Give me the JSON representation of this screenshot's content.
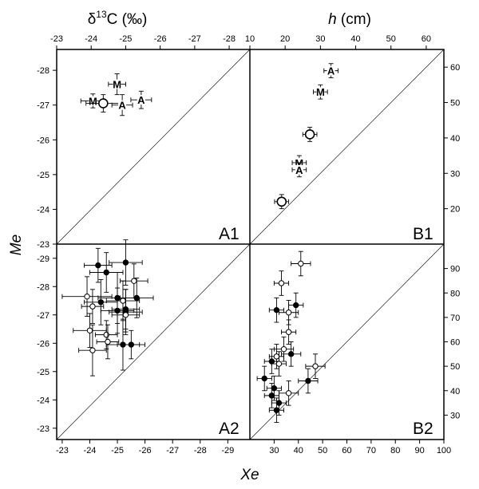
{
  "titles": {
    "top_left_prefix": "δ",
    "top_left_sup": "13",
    "top_left_rest": "C (‰)",
    "top_right_italic": "h",
    "top_right_rest": " (cm)",
    "x_axis": "Xe",
    "y_axis": "Me"
  },
  "axes": {
    "top_left_ticks": [
      "-23",
      "-24",
      "-25",
      "-26",
      "-27",
      "-28"
    ],
    "top_right_ticks": [
      "10",
      "20",
      "30",
      "40",
      "50",
      "60"
    ],
    "bottom_left_ticks": [
      "-23",
      "-24",
      "-25",
      "-26",
      "-27",
      "-28",
      "-29"
    ],
    "bottom_right_ticks": [
      "30",
      "40",
      "50",
      "60",
      "70",
      "80",
      "90",
      "100"
    ],
    "left_upper_ticks": [
      "-28",
      "-27",
      "-26",
      "-25",
      "-24",
      "-23"
    ],
    "left_lower_ticks": [
      "-29",
      "-28",
      "-27",
      "-26",
      "-25",
      "-24",
      "-23"
    ],
    "right_upper_ticks": [
      "60",
      "50",
      "40",
      "30",
      "20"
    ],
    "right_lower_ticks": [
      "90",
      "80",
      "70",
      "60",
      "50",
      "40",
      "30"
    ]
  },
  "chart_data": [
    {
      "panel": "A1",
      "type": "scatter",
      "x_range": [
        -23,
        -28.6
      ],
      "y_range": [
        -23,
        -28.6
      ],
      "diagonal": true,
      "points": [
        {
          "label": "M",
          "x": -24.75,
          "y": -27.6,
          "xerr": 0.25,
          "yerr": 0.3
        },
        {
          "label": "A",
          "x": -25.45,
          "y": -27.15,
          "xerr": 0.3,
          "yerr": 0.25
        },
        {
          "label": "M",
          "x": -24.05,
          "y": -27.12,
          "xerr": 0.35,
          "yerr": 0.2
        },
        {
          "label": "O",
          "x": -24.35,
          "y": -27.05,
          "xerr": 0.5,
          "yerr": 0.25
        },
        {
          "label": "A",
          "x": -24.9,
          "y": -27.0,
          "xerr": 0.3,
          "yerr": 0.3
        }
      ]
    },
    {
      "panel": "B1",
      "type": "scatter",
      "x_range": [
        10,
        65
      ],
      "y_range": [
        10,
        65
      ],
      "diagonal": true,
      "points": [
        {
          "label": "A",
          "x": 33,
          "y": 59,
          "xerr": 2,
          "yerr": 2
        },
        {
          "label": "M",
          "x": 30,
          "y": 53,
          "xerr": 2,
          "yerr": 2
        },
        {
          "label": "O",
          "x": 27,
          "y": 41,
          "xerr": 2,
          "yerr": 2
        },
        {
          "label": "M",
          "x": 24,
          "y": 33,
          "xerr": 2,
          "yerr": 2
        },
        {
          "label": "A",
          "x": 24,
          "y": 31,
          "xerr": 2,
          "yerr": 2
        },
        {
          "label": "O",
          "x": 19,
          "y": 22,
          "xerr": 2,
          "yerr": 2
        }
      ]
    },
    {
      "panel": "A2",
      "type": "scatter",
      "x_range": [
        -22.8,
        -29.8
      ],
      "y_range": [
        -22.6,
        -29.5
      ],
      "diagonal": true,
      "series": [
        {
          "name": "",
          "filled": true,
          "points": [
            {
              "x": -24.3,
              "y": -28.75,
              "xerr": 0.5,
              "yerr": 0.6
            },
            {
              "x": -25.3,
              "y": -28.85,
              "xerr": 0.6,
              "yerr": 0.8
            },
            {
              "x": -24.6,
              "y": -28.5,
              "xerr": 0.6,
              "yerr": 0.7
            },
            {
              "x": -25.0,
              "y": -27.6,
              "xerr": 0.7,
              "yerr": 0.9
            },
            {
              "x": -25.7,
              "y": -27.6,
              "xerr": 0.6,
              "yerr": 0.7
            },
            {
              "x": -24.4,
              "y": -27.45,
              "xerr": 0.6,
              "yerr": 0.8
            },
            {
              "x": -25.3,
              "y": -27.2,
              "xerr": 0.5,
              "yerr": 0.7
            },
            {
              "x": -25.0,
              "y": -27.15,
              "xerr": 0.6,
              "yerr": 0.8
            },
            {
              "x": -25.3,
              "y": -27.1,
              "xerr": 0.6,
              "yerr": 0.8
            },
            {
              "x": -25.5,
              "y": -25.95,
              "xerr": 0.5,
              "yerr": 0.5
            },
            {
              "x": -25.2,
              "y": -25.95,
              "xerr": 0.6,
              "yerr": 0.9
            }
          ]
        },
        {
          "name": "",
          "filled": false,
          "points": [
            {
              "x": -25.6,
              "y": -28.2,
              "xerr": 0.5,
              "yerr": 0.6
            },
            {
              "x": -23.9,
              "y": -27.65,
              "xerr": 0.9,
              "yerr": 0.7
            },
            {
              "x": -24.1,
              "y": -27.3,
              "xerr": 0.4,
              "yerr": 0.6
            },
            {
              "x": -25.2,
              "y": -27.5,
              "xerr": 0.6,
              "yerr": 0.7
            },
            {
              "x": -24.0,
              "y": -26.45,
              "xerr": 0.6,
              "yerr": 0.6
            },
            {
              "x": -24.6,
              "y": -26.3,
              "xerr": 0.4,
              "yerr": 0.5
            },
            {
              "x": -24.65,
              "y": -26.05,
              "xerr": 0.4,
              "yerr": 0.6
            },
            {
              "x": -24.1,
              "y": -25.75,
              "xerr": 0.5,
              "yerr": 0.9
            },
            {
              "x": -25.3,
              "y": -27.0,
              "xerr": 0.5,
              "yerr": 0.6
            }
          ]
        }
      ]
    },
    {
      "panel": "B2",
      "type": "scatter",
      "x_range": [
        20,
        100
      ],
      "y_range": [
        20,
        100
      ],
      "diagonal": true,
      "series": [
        {
          "name": "",
          "filled": true,
          "points": [
            {
              "x": 31,
              "y": 73,
              "xerr": 3,
              "yerr": 5
            },
            {
              "x": 39,
              "y": 75,
              "xerr": 3,
              "yerr": 5
            },
            {
              "x": 37,
              "y": 55,
              "xerr": 4,
              "yerr": 5
            },
            {
              "x": 29,
              "y": 52,
              "xerr": 3,
              "yerr": 5
            },
            {
              "x": 26,
              "y": 45,
              "xerr": 3,
              "yerr": 5
            },
            {
              "x": 30,
              "y": 41,
              "xerr": 3,
              "yerr": 5
            },
            {
              "x": 44,
              "y": 44,
              "xerr": 4,
              "yerr": 5
            },
            {
              "x": 29,
              "y": 38,
              "xerr": 3,
              "yerr": 5
            },
            {
              "x": 32,
              "y": 35,
              "xerr": 3,
              "yerr": 5
            },
            {
              "x": 31,
              "y": 32,
              "xerr": 3,
              "yerr": 5
            }
          ]
        },
        {
          "name": "",
          "filled": false,
          "points": [
            {
              "x": 41,
              "y": 92,
              "xerr": 4,
              "yerr": 5
            },
            {
              "x": 33,
              "y": 84,
              "xerr": 3,
              "yerr": 5
            },
            {
              "x": 36,
              "y": 72,
              "xerr": 4,
              "yerr": 5
            },
            {
              "x": 36,
              "y": 64,
              "xerr": 3,
              "yerr": 5
            },
            {
              "x": 34,
              "y": 57,
              "xerr": 4,
              "yerr": 5
            },
            {
              "x": 31,
              "y": 54,
              "xerr": 3,
              "yerr": 5
            },
            {
              "x": 32,
              "y": 51,
              "xerr": 3,
              "yerr": 5
            },
            {
              "x": 47,
              "y": 50,
              "xerr": 4,
              "yerr": 5
            },
            {
              "x": 36,
              "y": 39,
              "xerr": 4,
              "yerr": 5
            }
          ]
        }
      ]
    }
  ],
  "panel_labels": [
    "A1",
    "B1",
    "A2",
    "B2"
  ]
}
